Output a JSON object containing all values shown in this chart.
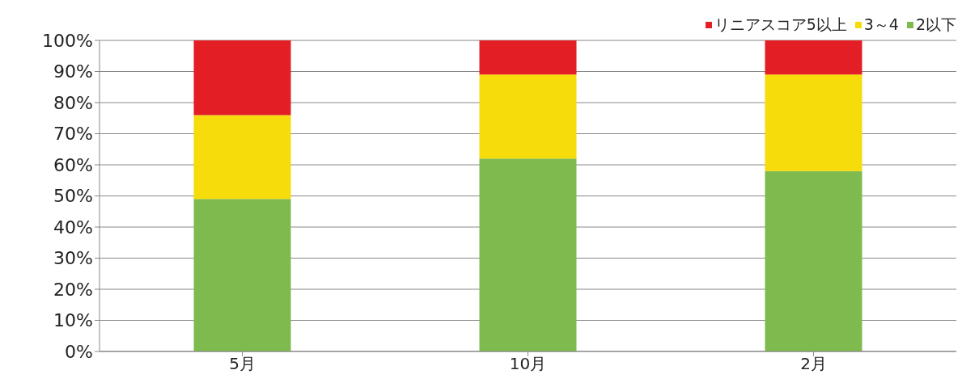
{
  "chart_data": {
    "type": "bar",
    "stacked": true,
    "categories": [
      "5月",
      "10月",
      "2月"
    ],
    "series": [
      {
        "name": "2以下",
        "color": "#7fba4e",
        "values": [
          49,
          62,
          58
        ]
      },
      {
        "name": "3～4",
        "color": "#f5dc0a",
        "values": [
          27,
          27,
          31
        ]
      },
      {
        "name": "リニアスコア5以上",
        "color": "#e31e24",
        "values": [
          24,
          11,
          11
        ]
      }
    ],
    "ylim": [
      0,
      100
    ],
    "yticks": [
      {
        "value": 0,
        "label": "0%"
      },
      {
        "value": 10,
        "label": "10%"
      },
      {
        "value": 20,
        "label": "20%"
      },
      {
        "value": 30,
        "label": "30%"
      },
      {
        "value": 40,
        "label": "40%"
      },
      {
        "value": 50,
        "label": "50%"
      },
      {
        "value": 60,
        "label": "60%"
      },
      {
        "value": 70,
        "label": "70%"
      },
      {
        "value": 80,
        "label": "80%"
      },
      {
        "value": 90,
        "label": "90%"
      },
      {
        "value": 100,
        "label": "100%"
      }
    ],
    "grid": "y",
    "legend": "top right"
  }
}
